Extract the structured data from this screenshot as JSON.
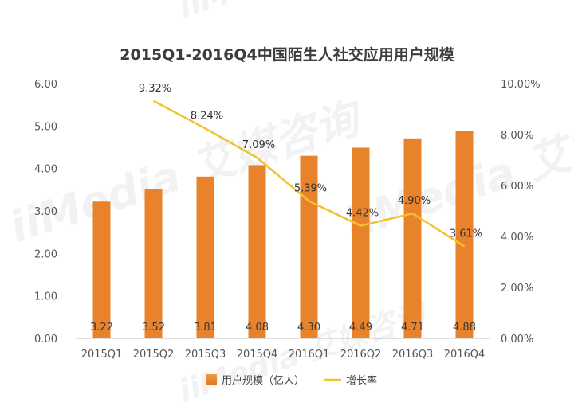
{
  "chart_data": {
    "type": "bar",
    "title": "2015Q1-2016Q4中国陌生人社交应用用户规模",
    "categories": [
      "2015Q1",
      "2015Q2",
      "2015Q3",
      "2015Q4",
      "2016Q1",
      "2016Q2",
      "2016Q3",
      "2016Q4"
    ],
    "series": [
      {
        "name": "用户规模（亿人）",
        "type": "bar",
        "axis": "left",
        "color": "#E8822B",
        "values": [
          3.22,
          3.52,
          3.81,
          4.08,
          4.3,
          4.49,
          4.71,
          4.88
        ],
        "labels": [
          "3.22",
          "3.52",
          "3.81",
          "4.08",
          "4.30",
          "4.49",
          "4.71",
          "4.88"
        ]
      },
      {
        "name": "增长率",
        "type": "line",
        "axis": "right",
        "color": "#F2C12E",
        "x": [
          "2015Q2",
          "2015Q3",
          "2015Q4",
          "2016Q1",
          "2016Q2",
          "2016Q3",
          "2016Q4"
        ],
        "values": [
          9.32,
          8.24,
          7.09,
          5.39,
          4.42,
          4.9,
          3.61
        ],
        "labels": [
          "9.32%",
          "8.24%",
          "7.09%",
          "5.39%",
          "4.42%",
          "4.90%",
          "3.61%"
        ]
      }
    ],
    "y_left": {
      "ylim": [
        0,
        6
      ],
      "ticks": [
        0,
        1,
        2,
        3,
        4,
        5,
        6
      ],
      "tick_labels": [
        "0.00",
        "1.00",
        "2.00",
        "3.00",
        "4.00",
        "5.00",
        "6.00"
      ]
    },
    "y_right": {
      "ylim": [
        0,
        10
      ],
      "ticks": [
        0,
        2,
        4,
        6,
        8,
        10
      ],
      "tick_labels": [
        "0.00%",
        "2.00%",
        "4.00%",
        "6.00%",
        "8.00%",
        "10.00%"
      ]
    },
    "grid": false,
    "legend_position": "bottom",
    "watermark": "iiMedia 艾媒咨询"
  }
}
